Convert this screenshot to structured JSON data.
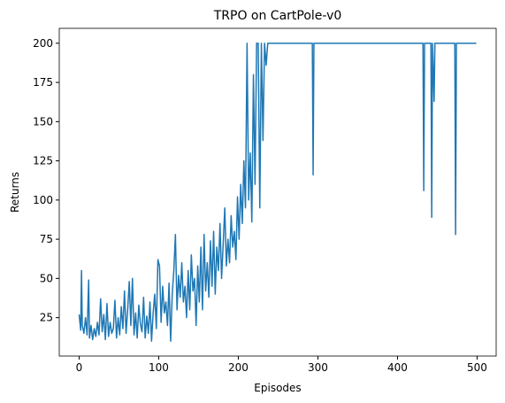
{
  "chart_data": {
    "type": "line",
    "title": "TRPO on CartPole-v0",
    "x_label": "Episodes",
    "y_label": "Returns",
    "x": [
      0,
      2,
      3,
      4,
      6,
      8,
      10,
      12,
      13,
      15,
      17,
      19,
      21,
      23,
      25,
      27,
      29,
      31,
      33,
      35,
      37,
      39,
      41,
      43,
      45,
      47,
      49,
      51,
      53,
      55,
      57,
      59,
      61,
      63,
      65,
      67,
      69,
      71,
      73,
      75,
      77,
      79,
      81,
      83,
      85,
      87,
      89,
      91,
      93,
      95,
      97,
      99,
      101,
      103,
      105,
      107,
      109,
      111,
      113,
      115,
      117,
      119,
      121,
      123,
      125,
      127,
      129,
      131,
      133,
      135,
      137,
      139,
      141,
      143,
      145,
      147,
      149,
      151,
      153,
      155,
      157,
      159,
      161,
      163,
      165,
      167,
      169,
      171,
      173,
      175,
      177,
      179,
      181,
      183,
      185,
      187,
      189,
      191,
      193,
      195,
      197,
      199,
      201,
      203,
      205,
      207,
      209,
      211,
      213,
      215,
      217,
      219,
      221,
      223,
      225,
      227,
      229,
      231,
      233,
      235,
      237,
      293,
      294,
      295,
      432,
      433,
      434,
      442,
      443,
      444,
      446,
      447,
      472,
      473,
      474,
      499
    ],
    "series": [
      {
        "name": "Returns",
        "color": "#1f77b4",
        "values": [
          27,
          17,
          55,
          20,
          15,
          25,
          14,
          49,
          12,
          20,
          11,
          18,
          13,
          22,
          14,
          37,
          16,
          27,
          11,
          34,
          13,
          22,
          15,
          18,
          36,
          12,
          25,
          14,
          32,
          18,
          42,
          15,
          30,
          48,
          20,
          50,
          14,
          28,
          12,
          33,
          21,
          16,
          38,
          12,
          26,
          15,
          35,
          10,
          28,
          40,
          18,
          62,
          58,
          22,
          45,
          28,
          35,
          20,
          47,
          10,
          40,
          55,
          78,
          30,
          52,
          38,
          60,
          35,
          45,
          25,
          55,
          30,
          65,
          42,
          50,
          20,
          58,
          35,
          70,
          30,
          78,
          42,
          60,
          38,
          74,
          45,
          80,
          40,
          70,
          55,
          85,
          50,
          72,
          95,
          58,
          75,
          60,
          90,
          70,
          80,
          62,
          102,
          75,
          110,
          85,
          125,
          95,
          200,
          100,
          130,
          86,
          180,
          110,
          200,
          200,
          95,
          200,
          138,
          200,
          186,
          200,
          200,
          116,
          200,
          200,
          106,
          200,
          200,
          89,
          200,
          163,
          200,
          200,
          78,
          200,
          200
        ]
      }
    ],
    "xlim": [
      -24.95,
      523.95
    ],
    "ylim": [
      0.5,
      209.5
    ],
    "xticks": [
      0,
      100,
      200,
      300,
      400,
      500
    ],
    "yticks": [
      25,
      50,
      75,
      100,
      125,
      150,
      175,
      200
    ]
  }
}
